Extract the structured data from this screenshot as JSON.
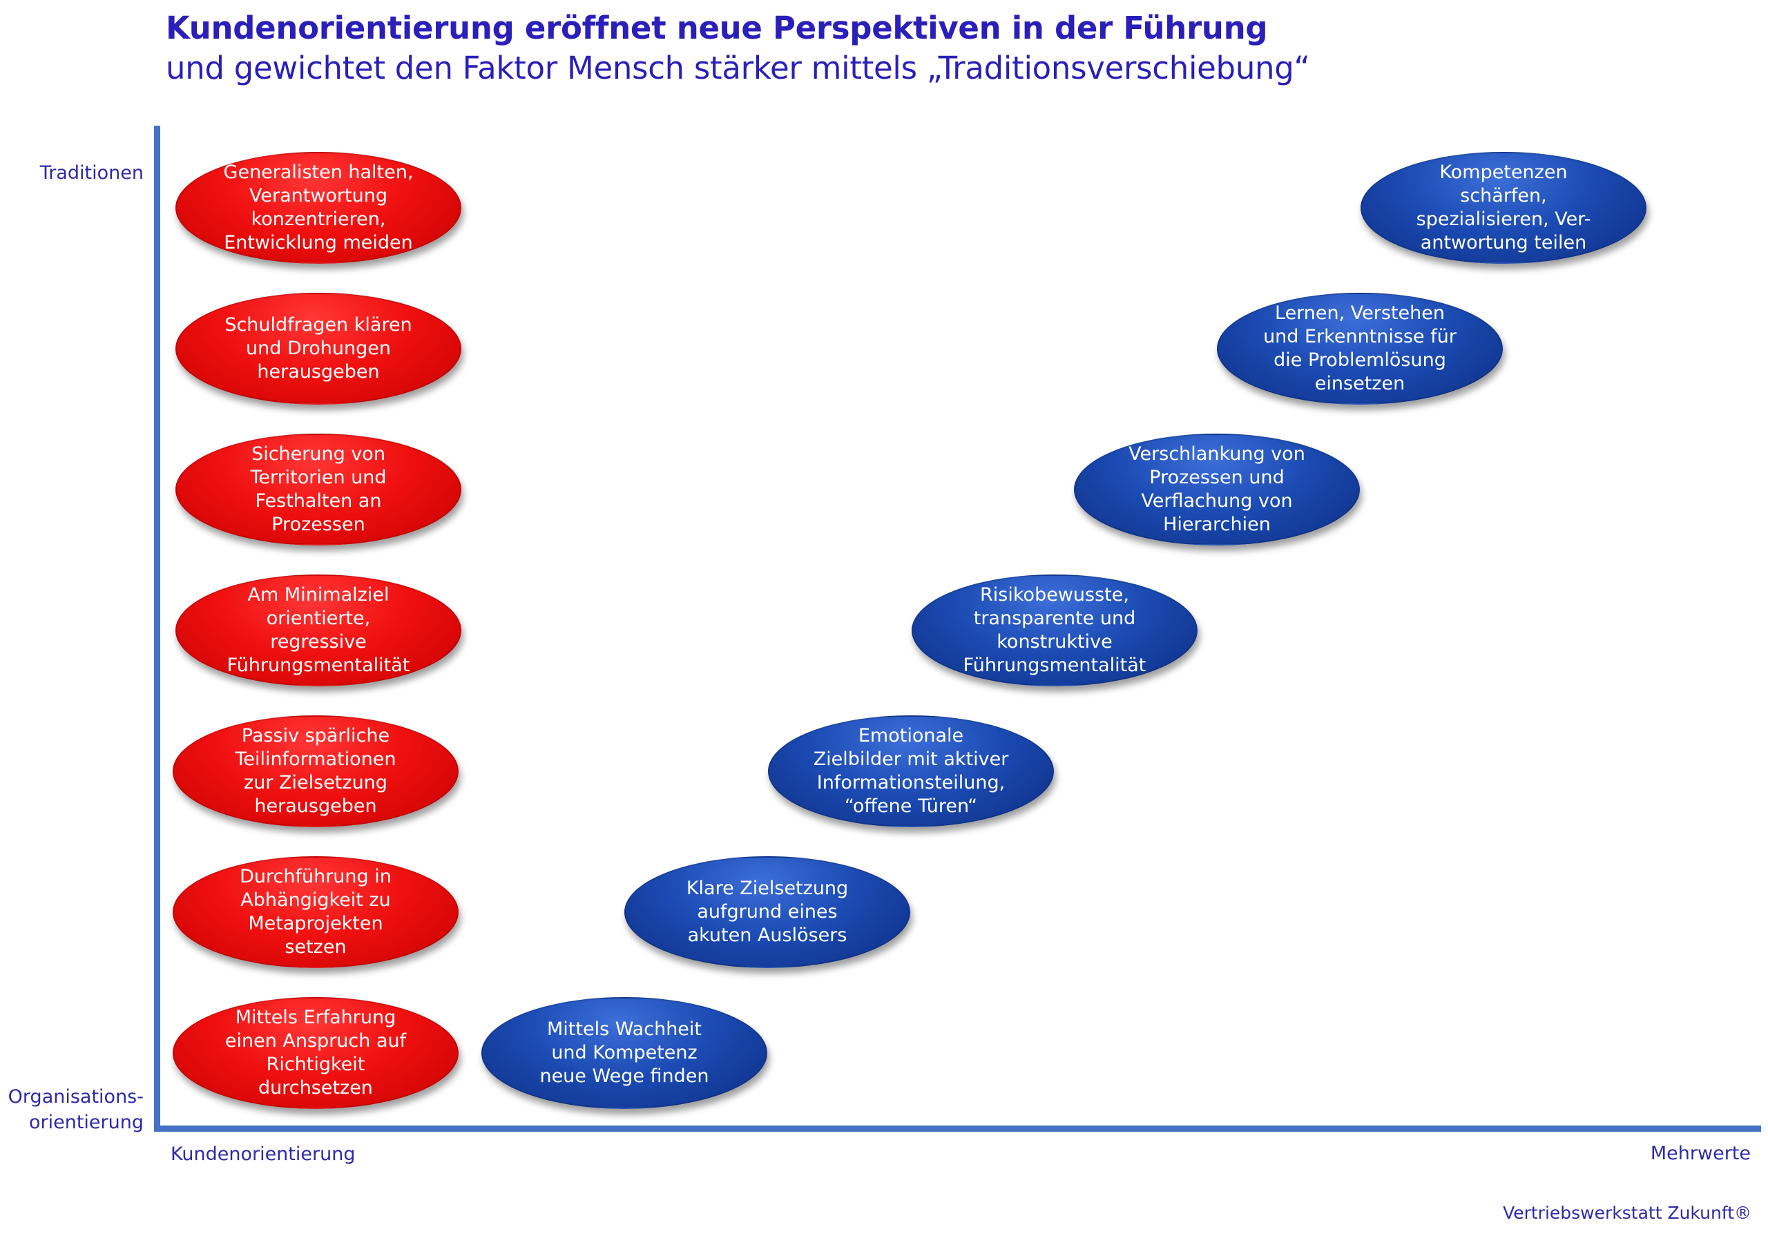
{
  "title": "Kundenorientierung eröffnet neue Perspektiven in der Führung",
  "subtitle": "und gewichtet den Faktor Mensch stärker mittels „Traditionsverschiebung“",
  "axis": {
    "y_top": "Traditionen",
    "y_bottom": "Organisations-\norientierung",
    "x_left": "Kundenorientierung",
    "x_right": "Mehrwerte"
  },
  "footer": "Vertriebswerkstatt Zukunft®",
  "colors": {
    "title": "#2a1fb8",
    "axis": "#4472c4",
    "label": "#2e2aa8",
    "red": "#f01010",
    "blue": "#1b4bb3"
  },
  "red_items": [
    "Generalisten halten,\nVerantwortung\nkonzentrieren,\nEntwicklung meiden",
    "Schuldfragen klären\nund Drohungen\nherausgeben",
    "Sicherung von\nTerritorien und\nFesthalten an\nProzessen",
    "Am Minimalziel\norientierte,\nregressive\nFührungsmentalität",
    "Passiv spärliche\nTeilinformationen\nzur Zielsetzung\nherausgeben",
    "Durchführung in\nAbhängigkeit zu\nMetaprojekten\nsetzen",
    "Mittels Erfahrung\neinen Anspruch auf\nRichtigkeit\ndurchsetzen"
  ],
  "blue_items": [
    "Kompetenzen\nschärfen,\nspezialisieren, Ver-\nantwortung teilen",
    "Lernen, Verstehen\nund Erkenntnisse für\ndie Problemlösung\neinsetzen",
    "Verschlankung von\nProzessen und\nVerflachung von\nHierarchien",
    "Risikobewusste,\ntransparente und\nkonstruktive\nFührungsmentalität",
    "Emotionale\nZielbilder mit aktiver\nInformationsteilung,\n“offene Türen“",
    "Klare Zielsetzung\naufgrund eines\nakuten Auslösers",
    "Mittels Wachheit\nund Kompetenz\nneue Wege finden"
  ]
}
